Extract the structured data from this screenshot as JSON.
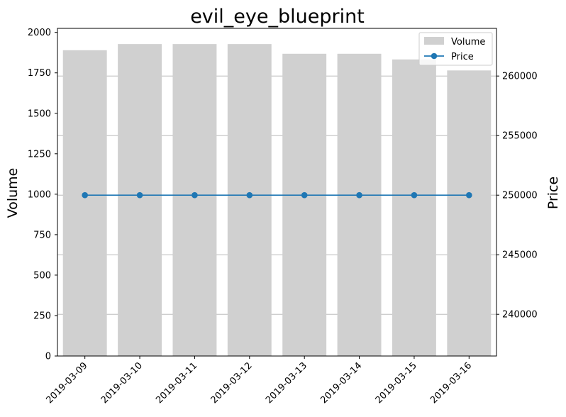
{
  "chart_data": {
    "type": "bar+line",
    "title": "evil_eye_blueprint",
    "categories": [
      "2019-03-09",
      "2019-03-10",
      "2019-03-11",
      "2019-03-12",
      "2019-03-13",
      "2019-03-14",
      "2019-03-15",
      "2019-03-16"
    ],
    "series": [
      {
        "name": "Volume",
        "type": "bar",
        "axis": "left",
        "color": "#d0d0d0",
        "values": [
          1890,
          1928,
          1928,
          1928,
          1868,
          1868,
          1833,
          1765
        ]
      },
      {
        "name": "Price",
        "type": "line",
        "axis": "right",
        "color": "#1f77b4",
        "marker": "circle",
        "values": [
          250000,
          250000,
          250000,
          250000,
          250000,
          250000,
          250000,
          250000
        ]
      }
    ],
    "ylabel": "Volume",
    "y2label": "Price",
    "ylim": [
      0,
      2025
    ],
    "y2lim": [
      236500,
      264000
    ],
    "yticks": [
      0,
      250,
      500,
      750,
      1000,
      1250,
      1500,
      1750,
      2000
    ],
    "y2ticks": [
      240000,
      245000,
      250000,
      255000,
      260000
    ],
    "grid": "horizontal lines at right-axis ticks",
    "legend": "top-right"
  }
}
